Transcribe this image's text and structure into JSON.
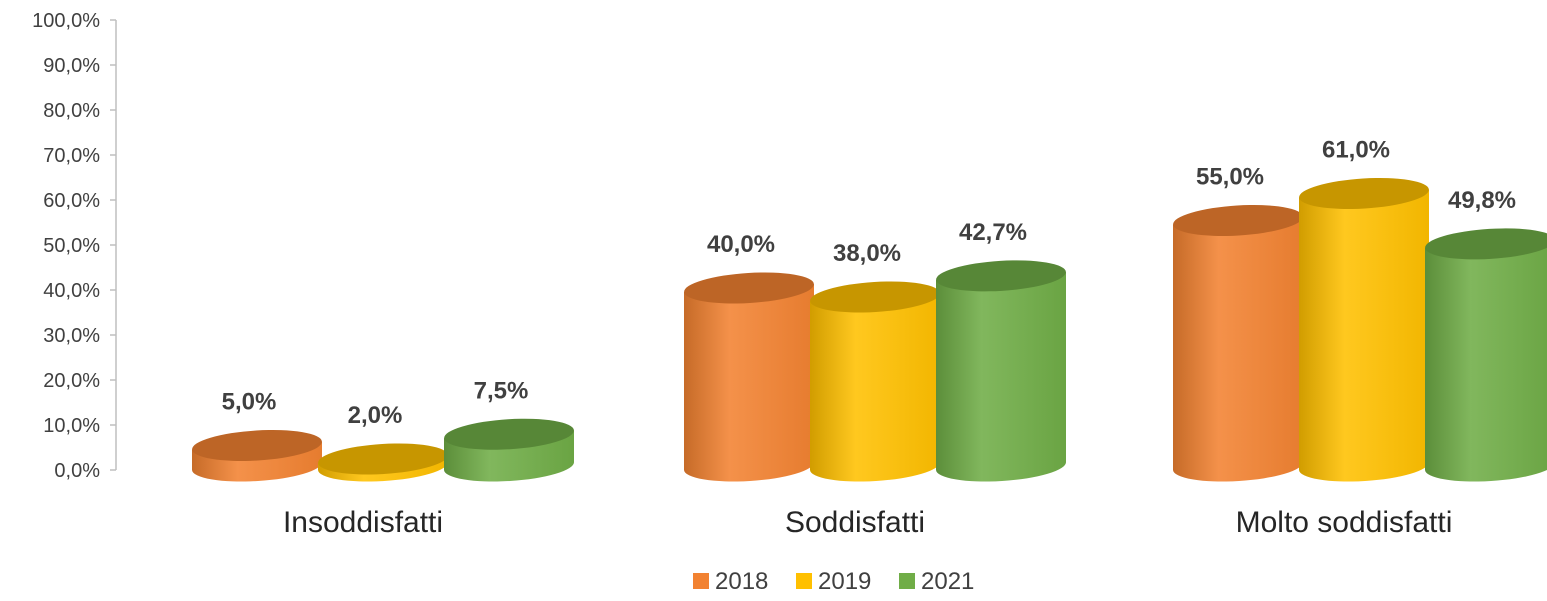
{
  "chart_data": {
    "type": "bar",
    "categories": [
      "Insoddisfatti",
      "Soddisfatti",
      "Molto soddisfatti"
    ],
    "series": [
      {
        "name": "2018",
        "values": [
          5.0,
          40.0,
          55.0
        ],
        "labels": [
          "5,0%",
          "40,0%",
          "55,0%"
        ],
        "color": "#f28231"
      },
      {
        "name": "2019",
        "values": [
          2.0,
          38.0,
          61.0
        ],
        "labels": [
          "2,0%",
          "38,0%",
          "61,0%"
        ],
        "color": "#ffc000"
      },
      {
        "name": "2021",
        "values": [
          7.5,
          42.7,
          49.8
        ],
        "labels": [
          "7,5%",
          "42,7%",
          "49,8%"
        ],
        "color": "#70ad47"
      }
    ],
    "ylim": [
      0,
      100
    ],
    "yticks": [
      "0,0%",
      "10,0%",
      "20,0%",
      "30,0%",
      "40,0%",
      "50,0%",
      "60,0%",
      "70,0%",
      "80,0%",
      "90,0%",
      "100,0%"
    ],
    "legend_position": "bottom",
    "grid": false
  }
}
